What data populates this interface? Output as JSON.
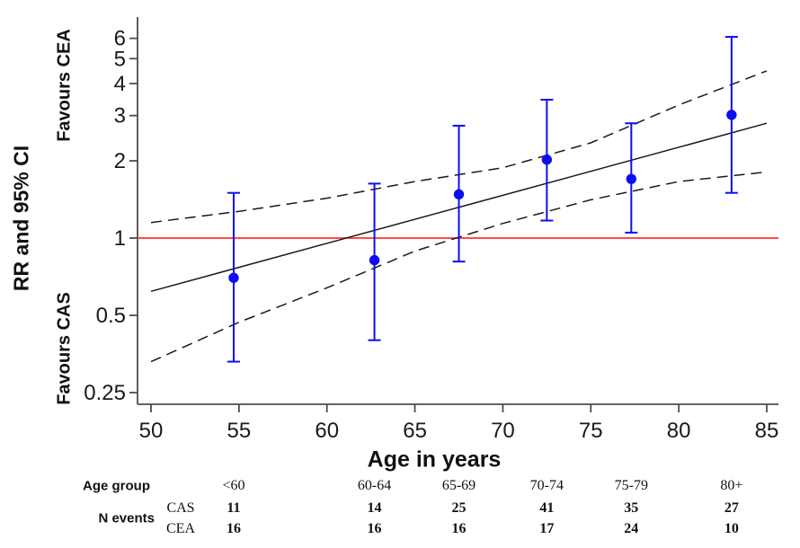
{
  "labels": {
    "y_axis_title": "RR and 95% CI",
    "favours_top": "Favours  CEA",
    "favours_bottom": "Favours CAS",
    "x_axis_title": "Age in years"
  },
  "chart_data": {
    "type": "scatter",
    "title": "",
    "xlabel": "Age in years",
    "ylabel": "RR and 95% CI",
    "x_axis": {
      "ticks": [
        50,
        55,
        60,
        65,
        70,
        75,
        80,
        85
      ],
      "range": [
        50,
        85
      ],
      "scale": "linear"
    },
    "y_axis": {
      "ticks": [
        6,
        5,
        4,
        3,
        2,
        1,
        0.5,
        0.25
      ],
      "range": [
        0.22,
        7.2
      ],
      "scale": "log"
    },
    "grid": "off",
    "legend": "none",
    "reference_line": {
      "y": 1.0,
      "meaning": "RR = 1 (no difference)"
    },
    "points": {
      "series_name": "RR and 95% CI per age group",
      "data": [
        {
          "age_group": "<60",
          "x": 54.7,
          "rr": 0.7,
          "ci_low": 0.33,
          "ci_high": 1.5
        },
        {
          "age_group": "60-64",
          "x": 62.7,
          "rr": 0.82,
          "ci_low": 0.4,
          "ci_high": 1.63
        },
        {
          "age_group": "65-69",
          "x": 67.5,
          "rr": 1.48,
          "ci_low": 0.81,
          "ci_high": 2.74
        },
        {
          "age_group": "70-74",
          "x": 72.5,
          "rr": 2.02,
          "ci_low": 1.17,
          "ci_high": 3.46
        },
        {
          "age_group": "75-79",
          "x": 77.3,
          "rr": 1.7,
          "ci_low": 1.05,
          "ci_high": 2.8
        },
        {
          "age_group": "80+",
          "x": 83.0,
          "rr": 3.02,
          "ci_low": 1.5,
          "ci_high": 6.08
        }
      ]
    },
    "regression_line": {
      "style": "solid",
      "x": [
        50,
        85
      ],
      "rr": [
        0.62,
        2.8
      ]
    },
    "ci_band_upper": {
      "style": "dashed",
      "x": [
        50,
        55,
        60,
        65,
        70,
        75,
        80,
        85
      ],
      "rr": [
        1.15,
        1.27,
        1.43,
        1.66,
        1.88,
        2.35,
        3.3,
        4.48
      ]
    },
    "ci_band_lower": {
      "style": "dashed",
      "x": [
        50,
        55,
        60,
        65,
        70,
        75,
        80,
        85
      ],
      "rr": [
        0.33,
        0.47,
        0.64,
        0.89,
        1.14,
        1.41,
        1.66,
        1.81
      ]
    }
  },
  "table": {
    "row_labels": {
      "age_group": "Age group",
      "n_events": "N events",
      "cas": "CAS",
      "cea": "CEA"
    },
    "age_groups": [
      "<60",
      "60-64",
      "65-69",
      "70-74",
      "75-79",
      "80+"
    ],
    "cas_events": [
      "11",
      "14",
      "25",
      "41",
      "35",
      "27"
    ],
    "cea_events": [
      "16",
      "16",
      "16",
      "17",
      "24",
      "10"
    ]
  },
  "colors": {
    "marker_blue": "#0e0ef0",
    "reference_red": "#ff3333",
    "line_black": "#1a1a1a",
    "axis_gray": "#4d4d4d"
  }
}
